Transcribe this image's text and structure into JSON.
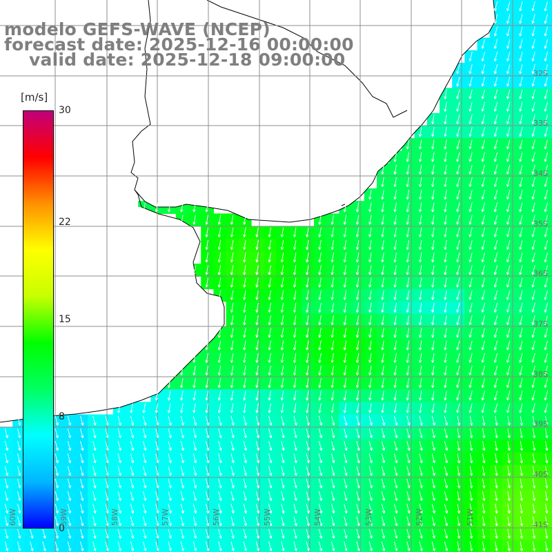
{
  "title": {
    "line1": "modelo GEFS-WAVE (NCEP)",
    "line2": "forecast date: 2025-12-16 00:00:00",
    "line3": "valid date: 2025-12-18 09:00:00"
  },
  "colorbar": {
    "unit": "[m/s]",
    "min": 0,
    "max": 30,
    "ticks": [
      "30",
      "22",
      "15",
      "8",
      "0"
    ],
    "tick_values": [
      30,
      22,
      15,
      8,
      0
    ],
    "colors": [
      "#0000ff",
      "#00b7ff",
      "#00ffff",
      "#00ff60",
      "#00ff00",
      "#c8ff00",
      "#ffff00",
      "#ff9000",
      "#ff0000",
      "#c0007a"
    ]
  },
  "axes": {
    "lat_labels": [
      "32S",
      "33S",
      "34S",
      "35S",
      "36S",
      "37S",
      "38S",
      "39S",
      "40S",
      "41S"
    ],
    "lon_labels": [
      "60W",
      "59W",
      "58W",
      "57W",
      "56W",
      "55W",
      "54W",
      "53W",
      "52W",
      "51W"
    ]
  },
  "map": {
    "land_color": "#ffffff",
    "grid_color": "#8c8c8c",
    "coast_color": "#000000",
    "arrow_color": "#ffffff"
  }
}
